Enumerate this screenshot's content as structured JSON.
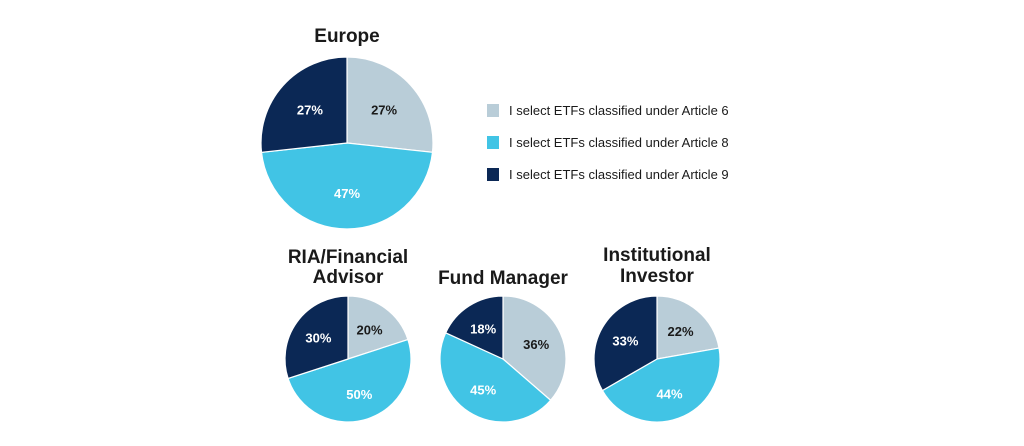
{
  "chart_data": [
    {
      "type": "pie",
      "title": [
        "Europe"
      ],
      "slices": [
        {
          "category": "Article 6",
          "value": 27
        },
        {
          "category": "Article 8",
          "value": 47
        },
        {
          "category": "Article 9",
          "value": 27
        }
      ],
      "labels": [
        "27%",
        "47%",
        "27%"
      ]
    },
    {
      "type": "pie",
      "title": [
        "RIA/Financial",
        "Advisor"
      ],
      "slices": [
        {
          "category": "Article 6",
          "value": 20
        },
        {
          "category": "Article 8",
          "value": 50
        },
        {
          "category": "Article 9",
          "value": 30
        }
      ],
      "labels": [
        "20%",
        "50%",
        "30%"
      ]
    },
    {
      "type": "pie",
      "title": [
        "Fund Manager"
      ],
      "slices": [
        {
          "category": "Article 6",
          "value": 36
        },
        {
          "category": "Article 8",
          "value": 45
        },
        {
          "category": "Article 9",
          "value": 18
        }
      ],
      "labels": [
        "36%",
        "45%",
        "18%"
      ]
    },
    {
      "type": "pie",
      "title": [
        "Institutional",
        "Investor"
      ],
      "slices": [
        {
          "category": "Article 6",
          "value": 22
        },
        {
          "category": "Article 8",
          "value": 44
        },
        {
          "category": "Article 9",
          "value": 33
        }
      ],
      "labels": [
        "22%",
        "44%",
        "33%"
      ]
    }
  ],
  "legend": {
    "placement": "right",
    "items": [
      {
        "label": "I select ETFs classified under Article 6",
        "color": "#b9cdd8"
      },
      {
        "label": "I select ETFs classified under Article 8",
        "color": "#41c4e5"
      },
      {
        "label": "I select ETFs classified under Article 9",
        "color": "#0b2855"
      }
    ]
  },
  "colors": {
    "article6": "#b9cdd8",
    "article8": "#41c4e5",
    "article9": "#0b2855",
    "label_on_dark": "#ffffff",
    "label_on_light": "#1a1a1a"
  }
}
